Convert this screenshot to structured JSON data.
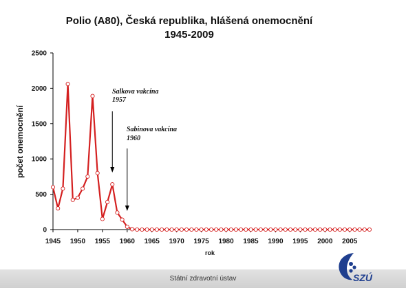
{
  "footer": {
    "text": "Státní zdravotní ústav"
  },
  "logo": {
    "text": "SZÚ",
    "color": "#1f3f8f"
  },
  "chart_data": {
    "type": "line",
    "title": [
      "Polio (A80), Česká republika, hlášená onemocnění",
      "1945-2009"
    ],
    "xlabel": "rok",
    "ylabel": "počet onemocnění",
    "xlim": [
      1945,
      2009
    ],
    "ylim": [
      0,
      2500
    ],
    "yticks": [
      0,
      500,
      1000,
      1500,
      2000,
      2500
    ],
    "xticks": [
      1945,
      1950,
      1955,
      1960,
      1965,
      1970,
      1975,
      1980,
      1985,
      1990,
      1995,
      2000,
      2005
    ],
    "grid": false,
    "series_color": "#d42020",
    "series": [
      {
        "x": [
          1945,
          1946,
          1947,
          1948,
          1949,
          1950,
          1951,
          1952,
          1953,
          1954,
          1955,
          1956,
          1957,
          1958,
          1959,
          1960,
          1961,
          1962,
          1963,
          1964,
          1965,
          1966,
          1967,
          1968,
          1969,
          1970,
          1971,
          1972,
          1973,
          1974,
          1975,
          1976,
          1977,
          1978,
          1979,
          1980,
          1981,
          1982,
          1983,
          1984,
          1985,
          1986,
          1987,
          1988,
          1989,
          1990,
          1991,
          1992,
          1993,
          1994,
          1995,
          1996,
          1997,
          1998,
          1999,
          2000,
          2001,
          2002,
          2003,
          2004,
          2005,
          2006,
          2007,
          2008,
          2009
        ],
        "y": [
          600,
          300,
          580,
          2060,
          420,
          450,
          580,
          750,
          1890,
          800,
          150,
          390,
          640,
          240,
          140,
          40,
          5,
          0,
          0,
          0,
          0,
          0,
          0,
          0,
          0,
          0,
          0,
          0,
          0,
          0,
          0,
          0,
          0,
          0,
          0,
          0,
          0,
          0,
          0,
          0,
          0,
          0,
          0,
          0,
          0,
          0,
          0,
          0,
          0,
          0,
          0,
          0,
          0,
          0,
          0,
          0,
          0,
          0,
          0,
          0,
          0,
          0,
          0,
          0,
          0
        ]
      }
    ],
    "annotations": [
      {
        "lines": [
          "Salkova vakcína",
          "1957"
        ],
        "x": 1957
      },
      {
        "lines": [
          "Sabinova vakcína",
          "1960"
        ],
        "x": 1960
      }
    ]
  }
}
